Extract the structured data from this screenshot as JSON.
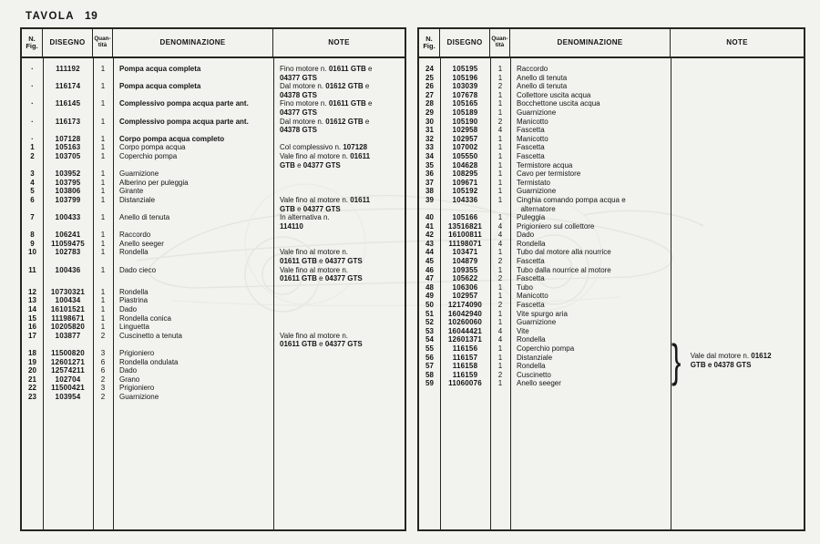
{
  "page": {
    "title_label": "TAVOLA",
    "title_number": "19"
  },
  "colors": {
    "paper": "#f2f2ee",
    "ink": "#141414",
    "line": "#26261f",
    "watermark": "#e3e3dc"
  },
  "table_headers": {
    "fig": "N.\nFig.",
    "disegno": "DISEGNO",
    "qty": "Quan-\ntità",
    "denominazione": "DENOMINAZIONE",
    "note": "NOTE"
  },
  "left_table": {
    "rows": [
      {
        "fig": "·",
        "disegno": "111192",
        "qty": "1",
        "den": "Pompa acqua completa",
        "den_bold": true,
        "note": [
          {
            "t": "Fino  motore n. "
          },
          {
            "t": "01611 GTB",
            "b": true
          },
          {
            "t": " e"
          },
          {
            "br": true
          },
          {
            "t": "04377 GTS",
            "b": true
          }
        ]
      },
      {
        "fig": "·",
        "disegno": "116174",
        "qty": "1",
        "den": "Pompa acqua completa",
        "den_bold": true,
        "note": [
          {
            "t": "Dal motore n. "
          },
          {
            "t": "01612 GTB",
            "b": true
          },
          {
            "t": " e"
          },
          {
            "br": true
          },
          {
            "t": "04378 GTS",
            "b": true
          }
        ]
      },
      {
        "fig": "·",
        "disegno": "116145",
        "qty": "1",
        "den": "Complessivo pompa acqua parte ant.",
        "den_bold": true,
        "note": [
          {
            "t": "Fino motore n. "
          },
          {
            "t": "01611 GTB",
            "b": true
          },
          {
            "t": " e"
          },
          {
            "br": true
          },
          {
            "t": "04377 GTS",
            "b": true
          }
        ]
      },
      {
        "fig": "·",
        "disegno": "116173",
        "qty": "1",
        "den": "Complessivo pompa acqua parte ant.",
        "den_bold": true,
        "note": [
          {
            "t": "Dal motore n. "
          },
          {
            "t": "01612 GTB",
            "b": true
          },
          {
            "t": " e"
          },
          {
            "br": true
          },
          {
            "t": "04378 GTS",
            "b": true
          }
        ]
      },
      {
        "fig": "·",
        "disegno": "107128",
        "qty": "1",
        "den": "Corpo pompa acqua completo",
        "den_bold": true,
        "note": []
      },
      {
        "fig": "1",
        "disegno": "105163",
        "qty": "1",
        "den": "Corpo pompa acqua",
        "note": [
          {
            "t": "Col complessivo n. "
          },
          {
            "t": "107128",
            "b": true
          }
        ]
      },
      {
        "fig": "2",
        "disegno": "103705",
        "qty": "1",
        "den": "Coperchio pompa",
        "note": [
          {
            "t": "Vale fino al motore n. "
          },
          {
            "t": "01611",
            "b": true
          },
          {
            "br": true
          },
          {
            "t": "GTB",
            "b": true
          },
          {
            "t": " e "
          },
          {
            "t": "04377 GTS",
            "b": true
          }
        ]
      },
      {
        "fig": "3",
        "disegno": "103952",
        "qty": "1",
        "den": "Guarnizione",
        "note": []
      },
      {
        "fig": "4",
        "disegno": "103795",
        "qty": "1",
        "den": "Alberino per puleggia",
        "note": []
      },
      {
        "fig": "5",
        "disegno": "103806",
        "qty": "1",
        "den": "Girante",
        "note": []
      },
      {
        "fig": "6",
        "disegno": "103799",
        "qty": "1",
        "den": "Distanziale",
        "note": [
          {
            "t": "Vale fino al motore n. "
          },
          {
            "t": "01611",
            "b": true
          },
          {
            "br": true
          },
          {
            "t": "GTB",
            "b": true
          },
          {
            "t": " e "
          },
          {
            "t": "04377 GTS",
            "b": true
          }
        ]
      },
      {
        "fig": "7",
        "disegno": "100433",
        "qty": "1",
        "den": "Anello di tenuta",
        "note": [
          {
            "t": "In alternativa n."
          },
          {
            "br": true
          },
          {
            "t": "114110",
            "b": true
          }
        ]
      },
      {
        "fig": "8",
        "disegno": "106241",
        "qty": "1",
        "den": "Raccordo",
        "note": []
      },
      {
        "fig": "9",
        "disegno": "11059475",
        "qty": "1",
        "den": "Anello seeger",
        "note": []
      },
      {
        "fig": "10",
        "disegno": "102783",
        "qty": "1",
        "den": "Rondella",
        "note": [
          {
            "t": "Vale fino al motore n."
          },
          {
            "br": true
          },
          {
            "t": "01611 GTB",
            "b": true
          },
          {
            "t": " e "
          },
          {
            "t": "04377 GTS",
            "b": true
          }
        ]
      },
      {
        "fig": "11",
        "disegno": "100436",
        "qty": "1",
        "den": "Dado cieco",
        "note": [
          {
            "t": "Vale fino al motore n."
          },
          {
            "br": true
          },
          {
            "t": "01611 GTB",
            "b": true
          },
          {
            "t": " e "
          },
          {
            "t": "04377 GTS",
            "b": true
          }
        ]
      },
      {
        "fig": "12",
        "disegno": "10730321",
        "qty": "1",
        "den": "Rondella",
        "gap": 5,
        "note": []
      },
      {
        "fig": "13",
        "disegno": "100434",
        "qty": "1",
        "den": "Piastrina",
        "note": []
      },
      {
        "fig": "14",
        "disegno": "16101521",
        "qty": "1",
        "den": "Dado",
        "note": []
      },
      {
        "fig": "15",
        "disegno": "11198671",
        "qty": "1",
        "den": "Rondella conica",
        "note": []
      },
      {
        "fig": "16",
        "disegno": "10205820",
        "qty": "1",
        "den": "Linguetta",
        "note": []
      },
      {
        "fig": "17",
        "disegno": "103877",
        "qty": "2",
        "den": "Cuscinetto a tenuta",
        "note": [
          {
            "t": "Vale fino al motore n."
          },
          {
            "br": true
          },
          {
            "t": "01611 GTB",
            "b": true
          },
          {
            "t": " e "
          },
          {
            "t": "04377 GTS",
            "b": true
          }
        ]
      },
      {
        "fig": "18",
        "disegno": "11500820",
        "qty": "3",
        "den": "Prigioniero",
        "note": []
      },
      {
        "fig": "19",
        "disegno": "12601271",
        "qty": "6",
        "den": "Rondella ondulata",
        "note": []
      },
      {
        "fig": "20",
        "disegno": "12574211",
        "qty": "6",
        "den": "Dado",
        "note": []
      },
      {
        "fig": "21",
        "disegno": "102704",
        "qty": "2",
        "den": "Grano",
        "note": []
      },
      {
        "fig": "22",
        "disegno": "11500421",
        "qty": "3",
        "den": "Prigioniero",
        "note": []
      },
      {
        "fig": "23",
        "disegno": "103954",
        "qty": "2",
        "den": "Guarnizione",
        "note": []
      }
    ]
  },
  "right_table": {
    "rows": [
      {
        "fig": "24",
        "disegno": "105195",
        "qty": "1",
        "den": "Raccordo",
        "note": []
      },
      {
        "fig": "25",
        "disegno": "105196",
        "qty": "1",
        "den": "Anello di tenuta",
        "note": []
      },
      {
        "fig": "26",
        "disegno": "103039",
        "qty": "2",
        "den": "Anello di tenuta",
        "note": []
      },
      {
        "fig": "27",
        "disegno": "107678",
        "qty": "1",
        "den": "Collettore uscita acqua",
        "note": []
      },
      {
        "fig": "28",
        "disegno": "105165",
        "qty": "1",
        "den": "Bocchettone uscita acqua",
        "note": []
      },
      {
        "fig": "29",
        "disegno": "105189",
        "qty": "1",
        "den": "Guarnizione",
        "note": []
      },
      {
        "fig": "30",
        "disegno": "105190",
        "qty": "2",
        "den": "Manicotto",
        "note": []
      },
      {
        "fig": "31",
        "disegno": "102958",
        "qty": "4",
        "den": "Fascetta",
        "note": []
      },
      {
        "fig": "32",
        "disegno": "102957",
        "qty": "1",
        "den": "Manicotto",
        "note": []
      },
      {
        "fig": "33",
        "disegno": "107002",
        "qty": "1",
        "den": "Fascetta",
        "note": []
      },
      {
        "fig": "34",
        "disegno": "105550",
        "qty": "1",
        "den": "Fascetta",
        "note": []
      },
      {
        "fig": "35",
        "disegno": "104628",
        "qty": "1",
        "den": "Termistore acqua",
        "note": []
      },
      {
        "fig": "36",
        "disegno": "108295",
        "qty": "1",
        "den": "Cavo per termistore",
        "note": []
      },
      {
        "fig": "37",
        "disegno": "109671",
        "qty": "1",
        "den": "Termistato",
        "note": []
      },
      {
        "fig": "38",
        "disegno": "105192",
        "qty": "1",
        "den": "Guarnizione",
        "note": []
      },
      {
        "fig": "39",
        "disegno": "104336",
        "qty": "1",
        "den": "Cinghia comando pompa acqua e\n  alternatore",
        "note": []
      },
      {
        "fig": "40",
        "disegno": "105166",
        "qty": "1",
        "den": "Puleggia",
        "note": []
      },
      {
        "fig": "41",
        "disegno": "13516821",
        "qty": "4",
        "den": "Prigioniero sul collettore",
        "note": []
      },
      {
        "fig": "42",
        "disegno": "16100811",
        "qty": "4",
        "den": "Dado",
        "note": []
      },
      {
        "fig": "43",
        "disegno": "11198071",
        "qty": "4",
        "den": "Rondella",
        "note": []
      },
      {
        "fig": "44",
        "disegno": "103471",
        "qty": "1",
        "den": "Tubo dal motore alla nourrice",
        "note": []
      },
      {
        "fig": "45",
        "disegno": "104879",
        "qty": "2",
        "den": "Fascetta",
        "note": []
      },
      {
        "fig": "46",
        "disegno": "109355",
        "qty": "1",
        "den": "Tubo dalla nourrice al motore",
        "note": []
      },
      {
        "fig": "47",
        "disegno": "105622",
        "qty": "2",
        "den": "Fascetta",
        "note": []
      },
      {
        "fig": "48",
        "disegno": "106306",
        "qty": "1",
        "den": "Tubo",
        "note": []
      },
      {
        "fig": "49",
        "disegno": "102957",
        "qty": "1",
        "den": "Manicotto",
        "note": []
      },
      {
        "fig": "50",
        "disegno": "12174090",
        "qty": "2",
        "den": "Fascetta",
        "note": []
      },
      {
        "fig": "51",
        "disegno": "16042940",
        "qty": "1",
        "den": "Vite spurgo aria",
        "note": []
      },
      {
        "fig": "52",
        "disegno": "10260060",
        "qty": "1",
        "den": "Guarnizione",
        "note": []
      },
      {
        "fig": "53",
        "disegno": "16044421",
        "qty": "4",
        "den": "Vite",
        "note": []
      },
      {
        "fig": "54",
        "disegno": "12601371",
        "qty": "4",
        "den": "Rondella",
        "note": []
      },
      {
        "fig": "55",
        "disegno": "116156",
        "qty": "1",
        "den": "Coperchio pompa",
        "note": []
      },
      {
        "fig": "56",
        "disegno": "116157",
        "qty": "1",
        "den": "Distanziale",
        "note": []
      },
      {
        "fig": "57",
        "disegno": "116158",
        "qty": "1",
        "den": "Rondella",
        "note": []
      },
      {
        "fig": "58",
        "disegno": "116159",
        "qty": "2",
        "den": "Cuscinetto",
        "note": []
      },
      {
        "fig": "59",
        "disegno": "11060076",
        "qty": "1",
        "den": "Anello seeger",
        "note": []
      }
    ],
    "brace_note": {
      "glyph": "}",
      "segments": [
        {
          "t": "Vale dal motore n. "
        },
        {
          "t": "01612",
          "b": true
        },
        {
          "br": true
        },
        {
          "t": "GTB e 04378 GTS",
          "b": true
        }
      ]
    }
  }
}
